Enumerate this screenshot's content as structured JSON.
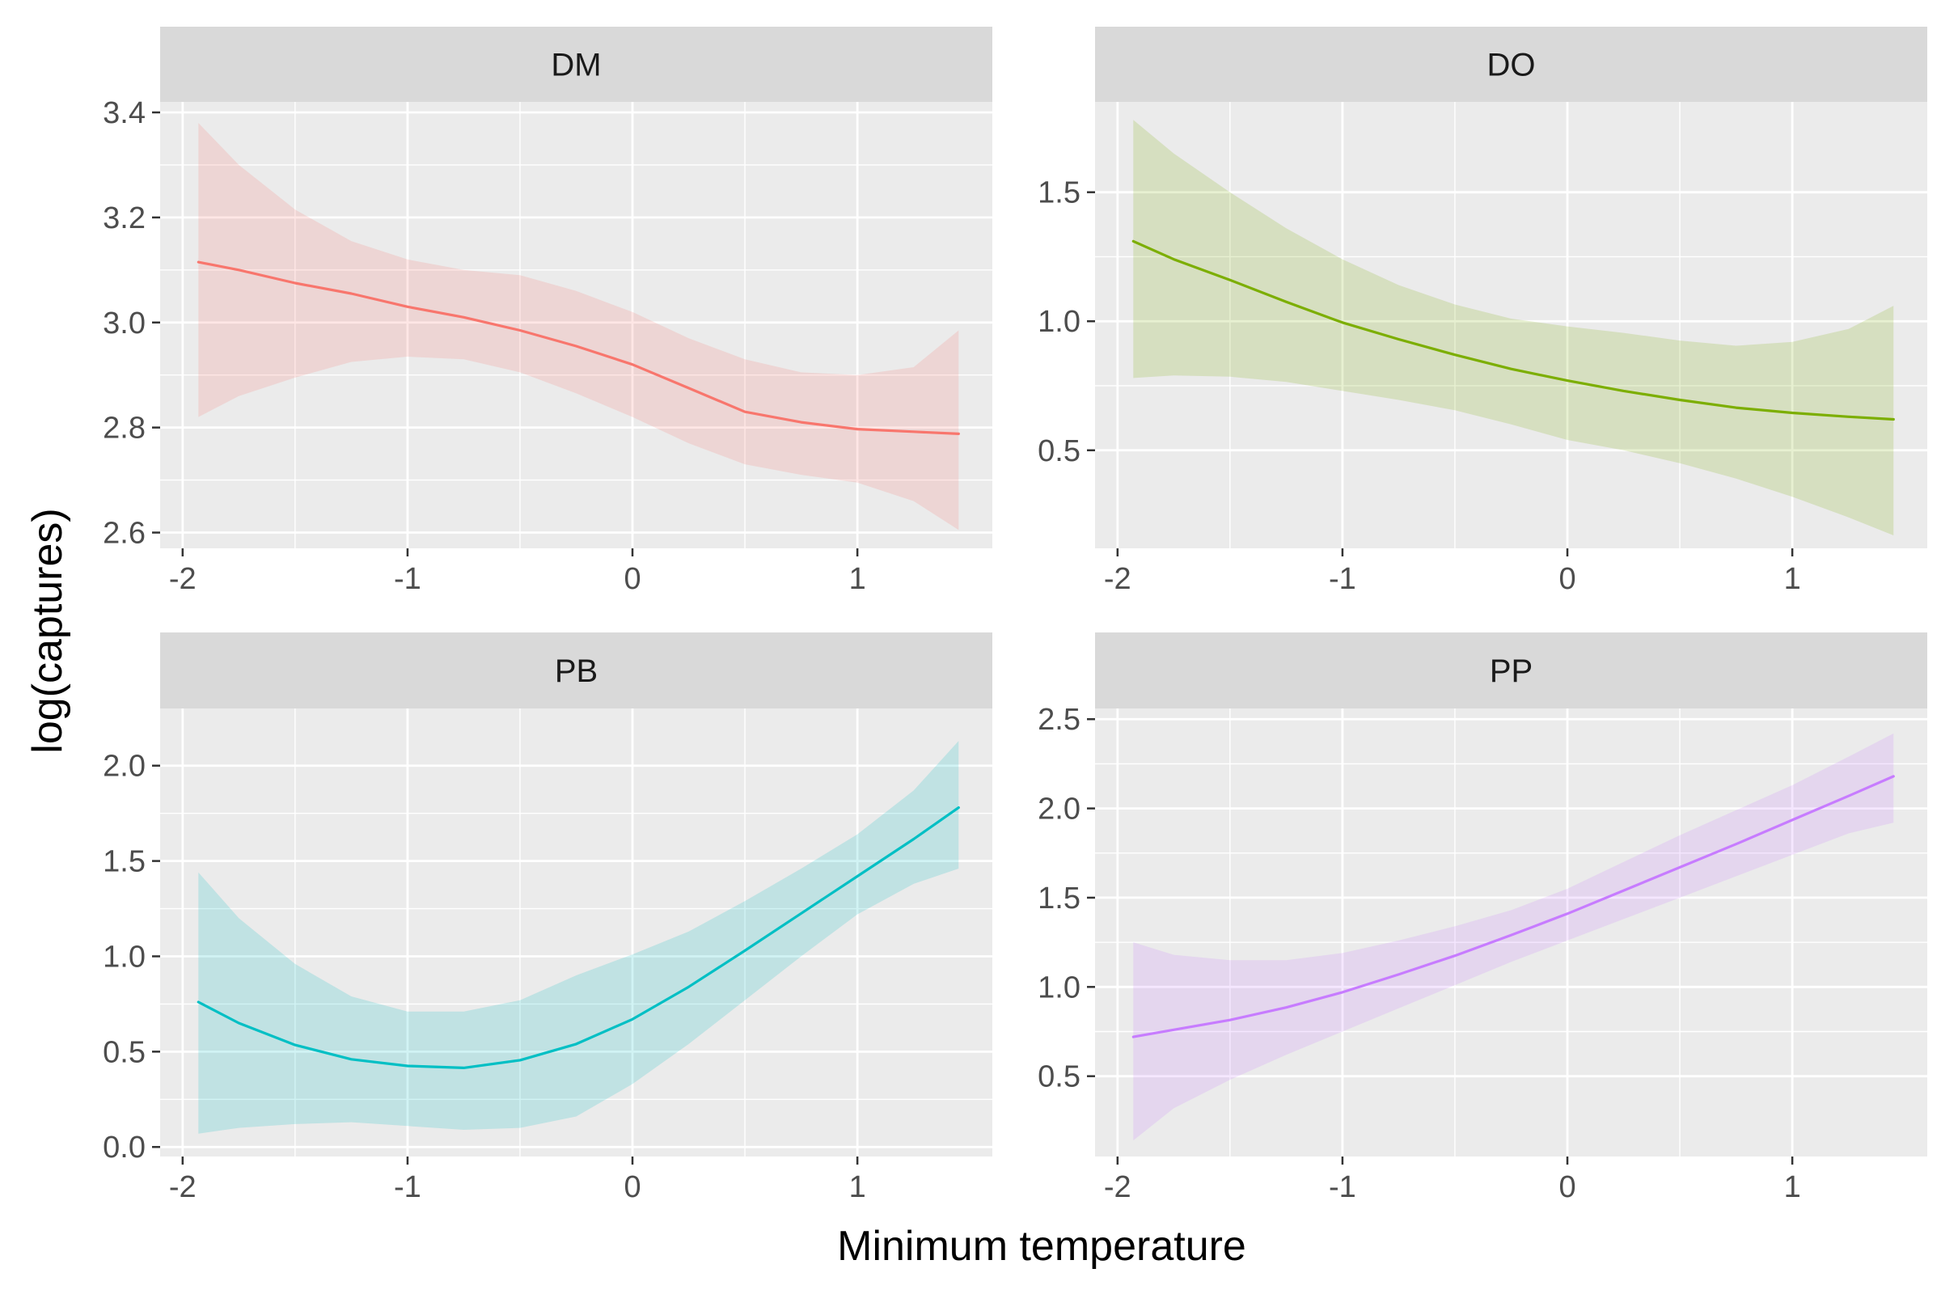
{
  "chart_data": {
    "type": "line",
    "xlabel": "Minimum temperature",
    "ylabel": "log(captures)",
    "colors": {
      "panel_background": "#EBEBEB",
      "strip_background": "#D9D9D9",
      "grid": "#FFFFFF",
      "tick": "#333333"
    },
    "panels": [
      {
        "label": "DM",
        "color": "#F8766D",
        "xlim": [
          -2.1,
          1.6
        ],
        "ylim": [
          2.57,
          3.42
        ],
        "xticks": [
          -2,
          -1,
          0,
          1
        ],
        "xticklabels": [
          "-2",
          "-1",
          "0",
          "1"
        ],
        "yticks": [
          2.6,
          2.8,
          3.0,
          3.2,
          3.4
        ],
        "yticklabels": [
          "2.6",
          "2.8",
          "3.0",
          "3.2",
          "3.4"
        ],
        "x": [
          -1.93,
          -1.75,
          -1.5,
          -1.25,
          -1.0,
          -0.75,
          -0.5,
          -0.25,
          0.0,
          0.25,
          0.5,
          0.75,
          1.0,
          1.25,
          1.45
        ],
        "y": [
          3.115,
          3.1,
          3.075,
          3.055,
          3.03,
          3.01,
          2.985,
          2.955,
          2.92,
          2.875,
          2.83,
          2.81,
          2.797,
          2.792,
          2.788
        ],
        "lower": [
          2.82,
          2.86,
          2.895,
          2.925,
          2.935,
          2.93,
          2.905,
          2.865,
          2.82,
          2.77,
          2.73,
          2.71,
          2.695,
          2.66,
          2.605
        ],
        "upper": [
          3.38,
          3.3,
          3.215,
          3.155,
          3.12,
          3.1,
          3.09,
          3.06,
          3.02,
          2.97,
          2.93,
          2.905,
          2.9,
          2.915,
          2.985
        ]
      },
      {
        "label": "DO",
        "color": "#7CAE00",
        "xlim": [
          -2.1,
          1.6
        ],
        "ylim": [
          0.12,
          1.85
        ],
        "xticks": [
          -2,
          -1,
          0,
          1
        ],
        "xticklabels": [
          "-2",
          "-1",
          "0",
          "1"
        ],
        "yticks": [
          0.5,
          1.0,
          1.5
        ],
        "yticklabels": [
          "0.5",
          "1.0",
          "1.5"
        ],
        "x": [
          -1.93,
          -1.75,
          -1.5,
          -1.25,
          -1.0,
          -0.75,
          -0.5,
          -0.25,
          0.0,
          0.25,
          0.5,
          0.75,
          1.0,
          1.25,
          1.45
        ],
        "y": [
          1.31,
          1.24,
          1.16,
          1.075,
          0.995,
          0.93,
          0.87,
          0.815,
          0.77,
          0.73,
          0.695,
          0.665,
          0.645,
          0.63,
          0.62
        ],
        "lower": [
          0.78,
          0.79,
          0.785,
          0.765,
          0.73,
          0.695,
          0.655,
          0.6,
          0.54,
          0.5,
          0.45,
          0.39,
          0.32,
          0.24,
          0.17
        ],
        "upper": [
          1.78,
          1.65,
          1.5,
          1.36,
          1.24,
          1.14,
          1.065,
          1.01,
          0.98,
          0.955,
          0.925,
          0.905,
          0.92,
          0.97,
          1.06
        ]
      },
      {
        "label": "PB",
        "color": "#00BFC4",
        "xlim": [
          -2.1,
          1.6
        ],
        "ylim": [
          -0.05,
          2.3
        ],
        "xticks": [
          -2,
          -1,
          0,
          1
        ],
        "xticklabels": [
          "-2",
          "-1",
          "0",
          "1"
        ],
        "yticks": [
          0.0,
          0.5,
          1.0,
          1.5,
          2.0
        ],
        "yticklabels": [
          "0.0",
          "0.5",
          "1.0",
          "1.5",
          "2.0"
        ],
        "x": [
          -1.93,
          -1.75,
          -1.5,
          -1.25,
          -1.0,
          -0.75,
          -0.5,
          -0.25,
          0.0,
          0.25,
          0.5,
          0.75,
          1.0,
          1.25,
          1.45
        ],
        "y": [
          0.76,
          0.65,
          0.535,
          0.46,
          0.425,
          0.415,
          0.455,
          0.54,
          0.67,
          0.84,
          1.03,
          1.225,
          1.42,
          1.615,
          1.78
        ],
        "lower": [
          0.07,
          0.1,
          0.12,
          0.13,
          0.11,
          0.09,
          0.1,
          0.16,
          0.33,
          0.54,
          0.77,
          1.0,
          1.22,
          1.38,
          1.46
        ],
        "upper": [
          1.44,
          1.2,
          0.96,
          0.79,
          0.71,
          0.71,
          0.77,
          0.9,
          1.01,
          1.13,
          1.29,
          1.46,
          1.64,
          1.87,
          2.13
        ]
      },
      {
        "label": "PP",
        "color": "#C77CFF",
        "xlim": [
          -2.1,
          1.6
        ],
        "ylim": [
          0.05,
          2.56
        ],
        "xticks": [
          -2,
          -1,
          0,
          1
        ],
        "xticklabels": [
          "-2",
          "-1",
          "0",
          "1"
        ],
        "yticks": [
          0.5,
          1.0,
          1.5,
          2.0,
          2.5
        ],
        "yticklabels": [
          "0.5",
          "1.0",
          "1.5",
          "2.0",
          "2.5"
        ],
        "x": [
          -1.93,
          -1.75,
          -1.5,
          -1.25,
          -1.0,
          -0.75,
          -0.5,
          -0.25,
          0.0,
          0.25,
          0.5,
          0.75,
          1.0,
          1.25,
          1.45
        ],
        "y": [
          0.72,
          0.76,
          0.815,
          0.885,
          0.97,
          1.07,
          1.175,
          1.29,
          1.41,
          1.54,
          1.67,
          1.8,
          1.935,
          2.07,
          2.18
        ],
        "lower": [
          0.14,
          0.32,
          0.48,
          0.62,
          0.75,
          0.88,
          1.01,
          1.14,
          1.26,
          1.38,
          1.5,
          1.62,
          1.74,
          1.86,
          1.92
        ],
        "upper": [
          1.25,
          1.18,
          1.15,
          1.15,
          1.19,
          1.26,
          1.34,
          1.43,
          1.55,
          1.7,
          1.85,
          1.99,
          2.13,
          2.29,
          2.42
        ]
      }
    ]
  }
}
